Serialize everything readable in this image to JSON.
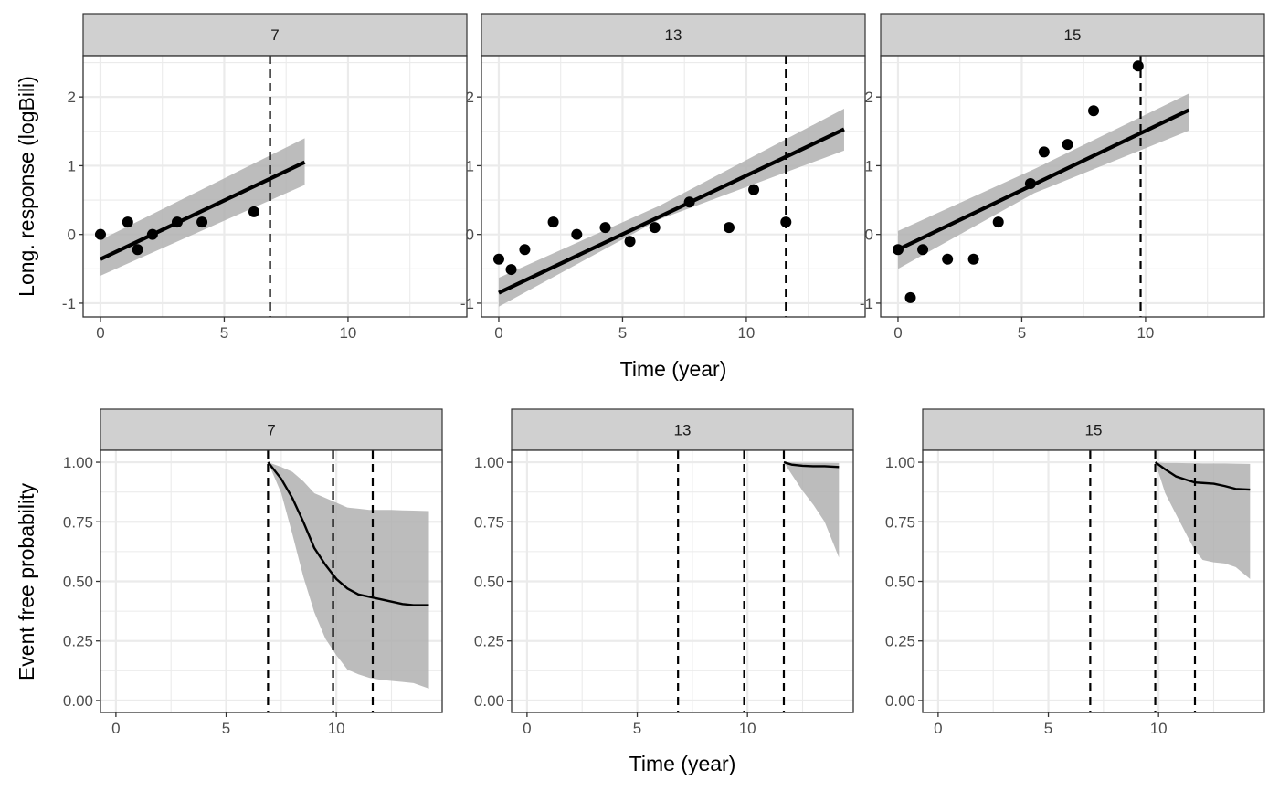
{
  "figure": {
    "top_row_ylabel": "Long. response (logBili)",
    "top_row_xlabel": "Time (year)",
    "bottom_row_ylabel": "Event free probability",
    "bottom_row_xlabel": "Time (year)",
    "colors": {
      "strip_fill": "#d0d0d0",
      "border": "#333333",
      "grid_major": "#ebebeb",
      "ribbon": "#b0b0b0",
      "line": "#000000",
      "tick_text": "#4d4d4d"
    }
  },
  "chart_data": [
    {
      "type": "scatter",
      "panel": "top",
      "facet": "7",
      "xlabel": "Time (year)",
      "ylabel": "Long. response (logBili)",
      "xlim": [
        -0.7,
        14.8
      ],
      "ylim": [
        -1.2,
        2.6
      ],
      "xticks": [
        0,
        5,
        10
      ],
      "yticks": [
        -1,
        0,
        1,
        2
      ],
      "grid": true,
      "points": [
        [
          0,
          0
        ],
        [
          1.1,
          0.18
        ],
        [
          1.5,
          -0.22
        ],
        [
          2.1,
          0
        ],
        [
          3.1,
          0.18
        ],
        [
          4.1,
          0.18
        ],
        [
          6.2,
          0.33
        ]
      ],
      "fit_line": [
        [
          0,
          -0.36
        ],
        [
          8.25,
          1.05
        ]
      ],
      "ribbon": {
        "x": [
          0,
          8.25
        ],
        "lower": [
          -0.6,
          0.72
        ],
        "upper": [
          -0.08,
          1.4
        ]
      },
      "vlines": [
        6.85
      ]
    },
    {
      "type": "scatter",
      "panel": "top",
      "facet": "13",
      "xlabel": "Time (year)",
      "ylabel": "Long. response (logBili)",
      "xlim": [
        -0.7,
        14.8
      ],
      "ylim": [
        -1.2,
        2.6
      ],
      "xticks": [
        0,
        5,
        10
      ],
      "yticks": [
        -1,
        0,
        1,
        2
      ],
      "grid": true,
      "points": [
        [
          0,
          -0.36
        ],
        [
          0.5,
          -0.51
        ],
        [
          1.05,
          -0.22
        ],
        [
          2.2,
          0.18
        ],
        [
          3.15,
          0
        ],
        [
          4.3,
          0.1
        ],
        [
          5.3,
          -0.1
        ],
        [
          6.3,
          0.1
        ],
        [
          7.7,
          0.47
        ],
        [
          9.3,
          0.1
        ],
        [
          10.3,
          0.65
        ],
        [
          11.6,
          0.18
        ]
      ],
      "fit_line": [
        [
          0,
          -0.85
        ],
        [
          13.95,
          1.53
        ]
      ],
      "ribbon": {
        "x": [
          0,
          6.5,
          13.95
        ],
        "lower": [
          -1.05,
          0.22,
          1.22
        ],
        "upper": [
          -0.63,
          0.42,
          1.83
        ]
      },
      "vlines": [
        11.6
      ]
    },
    {
      "type": "scatter",
      "panel": "top",
      "facet": "15",
      "xlabel": "Time (year)",
      "ylabel": "Long. response (logBili)",
      "xlim": [
        -0.7,
        14.8
      ],
      "ylim": [
        -1.2,
        2.6
      ],
      "xticks": [
        0,
        5,
        10
      ],
      "yticks": [
        -1,
        0,
        1,
        2
      ],
      "grid": true,
      "points": [
        [
          0,
          -0.22
        ],
        [
          0.5,
          -0.92
        ],
        [
          1.0,
          -0.22
        ],
        [
          2.0,
          -0.36
        ],
        [
          3.05,
          -0.36
        ],
        [
          4.05,
          0.18
        ],
        [
          5.35,
          0.74
        ],
        [
          5.9,
          1.2
        ],
        [
          6.85,
          1.31
        ],
        [
          7.9,
          1.8
        ],
        [
          9.7,
          2.45
        ]
      ],
      "fit_line": [
        [
          0,
          -0.22
        ],
        [
          11.75,
          1.81
        ]
      ],
      "ribbon": {
        "x": [
          0,
          5.5,
          11.75
        ],
        "lower": [
          -0.5,
          0.6,
          1.51
        ],
        "upper": [
          0.05,
          0.95,
          2.05
        ]
      },
      "vlines": [
        9.8
      ]
    },
    {
      "type": "line",
      "panel": "bottom",
      "facet": "7",
      "xlabel": "Time (year)",
      "ylabel": "Event free probability",
      "xlim": [
        -0.7,
        14.8
      ],
      "ylim": [
        -0.05,
        1.05
      ],
      "xticks": [
        0,
        5,
        10
      ],
      "yticks": [
        0.0,
        0.25,
        0.5,
        0.75,
        1.0
      ],
      "ytick_labels": [
        "0.00",
        "0.25",
        "0.50",
        "0.75",
        "1.00"
      ],
      "grid": true,
      "x": [
        6.9,
        7.5,
        8.0,
        8.5,
        9.0,
        9.5,
        10.0,
        10.5,
        11.0,
        11.5,
        12.0,
        12.5,
        13.0,
        13.5,
        14.2
      ],
      "y": [
        1.0,
        0.93,
        0.85,
        0.75,
        0.64,
        0.57,
        0.51,
        0.47,
        0.445,
        0.435,
        0.425,
        0.415,
        0.405,
        0.4,
        0.4
      ],
      "ribbon_lower": [
        1.0,
        0.87,
        0.7,
        0.52,
        0.37,
        0.26,
        0.19,
        0.13,
        0.11,
        0.095,
        0.087,
        0.082,
        0.078,
        0.073,
        0.05
      ],
      "ribbon_upper": [
        1.0,
        0.98,
        0.96,
        0.92,
        0.87,
        0.85,
        0.83,
        0.81,
        0.805,
        0.8,
        0.8,
        0.8,
        0.798,
        0.797,
        0.795
      ],
      "vlines": [
        6.9,
        9.85,
        11.65
      ]
    },
    {
      "type": "line",
      "panel": "bottom",
      "facet": "13",
      "xlabel": "Time (year)",
      "ylabel": "Event free probability",
      "xlim": [
        -0.7,
        14.8
      ],
      "ylim": [
        -0.05,
        1.05
      ],
      "xticks": [
        0,
        5,
        10
      ],
      "yticks": [
        0.0,
        0.25,
        0.5,
        0.75,
        1.0
      ],
      "ytick_labels": [
        "0.00",
        "0.25",
        "0.50",
        "0.75",
        "1.00"
      ],
      "grid": true,
      "x": [
        11.65,
        12.0,
        12.5,
        13.0,
        13.5,
        14.15
      ],
      "y": [
        1.0,
        0.99,
        0.985,
        0.983,
        0.983,
        0.98
      ],
      "ribbon_lower": [
        1.0,
        0.95,
        0.88,
        0.82,
        0.75,
        0.6
      ],
      "ribbon_upper": [
        1.0,
        0.999,
        0.998,
        0.998,
        0.998,
        0.997
      ],
      "vlines": [
        6.85,
        9.85,
        11.65
      ]
    },
    {
      "type": "line",
      "panel": "bottom",
      "facet": "15",
      "xlabel": "Time (year)",
      "ylabel": "Event free probability",
      "xlim": [
        -0.7,
        14.8
      ],
      "ylim": [
        -0.05,
        1.05
      ],
      "xticks": [
        0,
        5,
        10
      ],
      "yticks": [
        0.0,
        0.25,
        0.5,
        0.75,
        1.0
      ],
      "ytick_labels": [
        "0.00",
        "0.25",
        "0.50",
        "0.75",
        "1.00"
      ],
      "grid": true,
      "x": [
        9.85,
        10.3,
        10.8,
        11.3,
        11.65,
        12.0,
        12.5,
        13.0,
        13.5,
        14.15
      ],
      "y": [
        1.0,
        0.97,
        0.94,
        0.925,
        0.915,
        0.913,
        0.91,
        0.9,
        0.888,
        0.885
      ],
      "ribbon_lower": [
        1.0,
        0.87,
        0.78,
        0.69,
        0.63,
        0.59,
        0.58,
        0.575,
        0.56,
        0.51
      ],
      "ribbon_upper": [
        1.0,
        0.997,
        0.997,
        0.996,
        0.996,
        0.995,
        0.995,
        0.995,
        0.994,
        0.993
      ],
      "vlines": [
        6.9,
        9.85,
        11.65
      ]
    }
  ]
}
